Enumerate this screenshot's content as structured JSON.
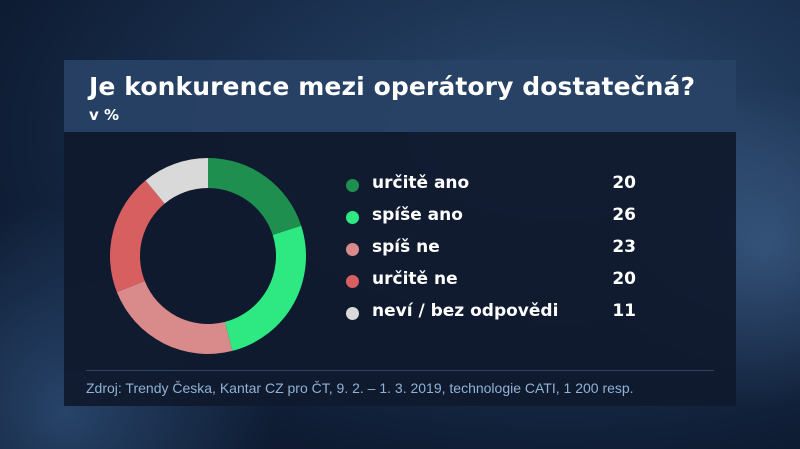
{
  "header": {
    "title": "Je konkurence mezi operátory dostatečná?",
    "subtitle": "v %"
  },
  "chart_data": {
    "type": "pie",
    "title": "Je konkurence mezi operátory dostatečná?",
    "subtitle": "v %",
    "style": "donut",
    "categories": [
      "určitě ano",
      "spíše ano",
      "spíš ne",
      "určitě ne",
      "neví / bez odpovědi"
    ],
    "values": [
      20,
      26,
      23,
      20,
      11
    ],
    "value_labels": [
      "20",
      "26",
      "23",
      "20",
      "11"
    ],
    "colors": [
      "#1e8f4e",
      "#2ee882",
      "#d98a8a",
      "#d75f5f",
      "#d9d9d9"
    ],
    "legend_position": "right",
    "grid": false
  },
  "footer": {
    "source": "Zdroj: Trendy Česka, Kantar CZ pro ČT, 9. 2. – 1. 3. 2019, technologie CATI, 1 200 resp."
  }
}
